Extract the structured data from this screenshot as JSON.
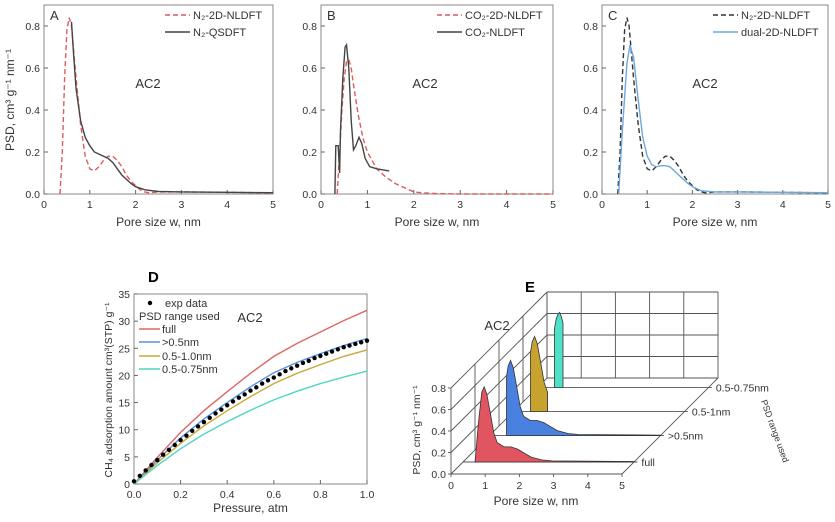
{
  "chart_data": [
    {
      "panel": "A",
      "type": "line",
      "annotation": "AC2",
      "xlabel": "Pore size w, nm",
      "ylabel": "PSD, cm³ g⁻¹ nm⁻¹",
      "xlim": [
        0,
        5
      ],
      "ylim": [
        0,
        0.9
      ],
      "xticks": [
        "0",
        "1",
        "2",
        "3",
        "4",
        "5"
      ],
      "yticks": [
        "0.0",
        "0.2",
        "0.4",
        "0.6",
        "0.8"
      ],
      "series": [
        {
          "name": "N₂-2D-NLDFT",
          "color": "#e05a5a",
          "dash": true,
          "x": [
            0.35,
            0.4,
            0.45,
            0.5,
            0.55,
            0.6,
            0.7,
            0.8,
            0.9,
            1.0,
            1.1,
            1.2,
            1.3,
            1.4,
            1.5,
            1.6,
            1.7,
            1.8,
            1.9,
            2.0,
            2.1,
            2.2,
            2.3,
            2.5,
            3,
            4,
            5
          ],
          "y": [
            0,
            0.2,
            0.55,
            0.78,
            0.84,
            0.8,
            0.55,
            0.33,
            0.18,
            0.12,
            0.11,
            0.13,
            0.16,
            0.18,
            0.18,
            0.16,
            0.13,
            0.09,
            0.06,
            0.04,
            0.02,
            0.01,
            0.005,
            0.01,
            0.01,
            0.008,
            0.005
          ]
        },
        {
          "name": "N₂-QSDFT",
          "color": "#444444",
          "dash": false,
          "x": [
            0.6,
            0.65,
            0.7,
            0.8,
            0.9,
            1.0,
            1.1,
            1.2,
            1.3,
            1.4,
            1.5,
            1.6,
            1.7,
            1.8,
            1.9,
            2.0,
            2.2,
            2.5,
            3,
            4,
            5
          ],
          "y": [
            0.82,
            0.65,
            0.5,
            0.35,
            0.27,
            0.23,
            0.2,
            0.19,
            0.18,
            0.17,
            0.15,
            0.12,
            0.09,
            0.07,
            0.05,
            0.035,
            0.02,
            0.012,
            0.01,
            0.008,
            0.006
          ]
        }
      ]
    },
    {
      "panel": "B",
      "type": "line",
      "annotation": "AC2",
      "xlabel": "Pore size w, nm",
      "ylabel": "",
      "xlim": [
        0,
        5
      ],
      "ylim": [
        0,
        0.9
      ],
      "xticks": [
        "0",
        "1",
        "2",
        "3",
        "4",
        "5"
      ],
      "yticks": [
        "0.0",
        "0.2",
        "0.4",
        "0.6",
        "0.8"
      ],
      "series": [
        {
          "name": "CO₂-2D-NLDFT",
          "color": "#e05a5a",
          "dash": true,
          "x": [
            0.35,
            0.4,
            0.45,
            0.5,
            0.55,
            0.6,
            0.65,
            0.7,
            0.8,
            0.9,
            1.0,
            1.2,
            1.4,
            1.6,
            1.8,
            2.0,
            2.2,
            2.5,
            3,
            5
          ],
          "y": [
            0,
            0.2,
            0.4,
            0.55,
            0.63,
            0.64,
            0.6,
            0.52,
            0.38,
            0.27,
            0.2,
            0.12,
            0.08,
            0.05,
            0.03,
            0.01,
            0.005,
            0.002,
            0,
            0
          ]
        },
        {
          "name": "CO₂-NLDFT",
          "color": "#444444",
          "dash": false,
          "x": [
            0.3,
            0.32,
            0.37,
            0.4,
            0.42,
            0.47,
            0.52,
            0.55,
            0.6,
            0.65,
            0.7,
            0.75,
            0.82,
            0.88,
            0.95,
            1.05,
            1.2,
            1.47
          ],
          "y": [
            0,
            0.23,
            0.23,
            0.1,
            0.3,
            0.55,
            0.7,
            0.71,
            0.6,
            0.35,
            0.21,
            0.23,
            0.27,
            0.24,
            0.17,
            0.13,
            0.12,
            0.11
          ]
        }
      ]
    },
    {
      "panel": "C",
      "type": "line",
      "annotation": "AC2",
      "xlabel": "Pore size w, nm",
      "ylabel": "",
      "xlim": [
        0,
        5
      ],
      "ylim": [
        0,
        0.9
      ],
      "xticks": [
        "0",
        "1",
        "2",
        "3",
        "4",
        "5"
      ],
      "yticks": [
        "0.0",
        "0.2",
        "0.4",
        "0.6",
        "0.8"
      ],
      "series": [
        {
          "name": "N₂-2D-NLDFT",
          "color": "#333333",
          "dash": true,
          "x": [
            0.35,
            0.4,
            0.45,
            0.5,
            0.55,
            0.6,
            0.7,
            0.8,
            0.9,
            1.0,
            1.1,
            1.2,
            1.3,
            1.4,
            1.5,
            1.6,
            1.7,
            1.8,
            1.9,
            2.0,
            2.1,
            2.2,
            2.3,
            2.5,
            3,
            4,
            5
          ],
          "y": [
            0,
            0.2,
            0.55,
            0.78,
            0.84,
            0.8,
            0.55,
            0.33,
            0.18,
            0.12,
            0.11,
            0.13,
            0.16,
            0.18,
            0.18,
            0.16,
            0.13,
            0.09,
            0.06,
            0.04,
            0.02,
            0.01,
            0.005,
            0.01,
            0.01,
            0.008,
            0.005
          ]
        },
        {
          "name": "dual-2D-NLDFT",
          "color": "#6fa8dc",
          "dash": false,
          "x": [
            0.37,
            0.45,
            0.55,
            0.62,
            0.7,
            0.8,
            0.9,
            1.0,
            1.1,
            1.2,
            1.3,
            1.4,
            1.5,
            1.6,
            1.7,
            1.8,
            1.9,
            2.0,
            2.2,
            2.5,
            3,
            4,
            5
          ],
          "y": [
            0,
            0.3,
            0.62,
            0.71,
            0.65,
            0.45,
            0.27,
            0.18,
            0.14,
            0.13,
            0.135,
            0.135,
            0.13,
            0.11,
            0.09,
            0.07,
            0.05,
            0.035,
            0.015,
            0.01,
            0.01,
            0.008,
            0.006
          ]
        }
      ]
    },
    {
      "panel": "D",
      "type": "line",
      "annotation": "AC2",
      "xlabel": "Pressure, atm",
      "ylabel": "CH₄ adsorption amount cm³(STP) g⁻¹",
      "xlim": [
        0,
        1.0
      ],
      "ylim": [
        0,
        35
      ],
      "xticks": [
        "0.0",
        "0.2",
        "0.4",
        "0.6",
        "0.8",
        "1.0"
      ],
      "yticks": [
        "0",
        "5",
        "10",
        "15",
        "20",
        "25",
        "30",
        "35"
      ],
      "legend_title": "PSD range used",
      "scatter": {
        "name": "exp data",
        "color": "#000000",
        "x": [
          0,
          0.025,
          0.05,
          0.075,
          0.1,
          0.125,
          0.15,
          0.175,
          0.2,
          0.225,
          0.25,
          0.275,
          0.3,
          0.325,
          0.35,
          0.375,
          0.4,
          0.425,
          0.45,
          0.475,
          0.5,
          0.525,
          0.55,
          0.575,
          0.6,
          0.625,
          0.65,
          0.675,
          0.7,
          0.725,
          0.75,
          0.775,
          0.8,
          0.825,
          0.85,
          0.875,
          0.9,
          0.925,
          0.95,
          0.975,
          1.0
        ],
        "y": [
          0.5,
          1.5,
          2.5,
          3.5,
          4.4,
          5.4,
          6.3,
          7.2,
          8.1,
          8.9,
          9.8,
          10.6,
          11.4,
          12.2,
          13.0,
          13.7,
          14.5,
          15.2,
          15.9,
          16.5,
          17.2,
          17.8,
          18.5,
          19.1,
          19.6,
          20.2,
          20.8,
          21.3,
          21.8,
          22.3,
          22.7,
          23.2,
          23.6,
          24.0,
          24.4,
          24.8,
          25.2,
          25.5,
          25.8,
          26.1,
          26.4
        ]
      },
      "series": [
        {
          "name": "full",
          "color": "#e06666",
          "x": [
            0,
            0.1,
            0.2,
            0.3,
            0.4,
            0.5,
            0.6,
            0.7,
            0.8,
            0.9,
            1.0
          ],
          "y": [
            0,
            4.9,
            9.5,
            13.5,
            17,
            20.4,
            23.5,
            25.9,
            28,
            30.1,
            32
          ]
        },
        {
          "name": ">0.5nm",
          "color": "#5b8fdc",
          "x": [
            0,
            0.1,
            0.2,
            0.3,
            0.4,
            0.5,
            0.6,
            0.7,
            0.8,
            0.9,
            1.0
          ],
          "y": [
            0,
            4.4,
            8.5,
            12,
            15,
            17.9,
            20.5,
            22.4,
            24,
            25.5,
            26.8
          ]
        },
        {
          "name": "0.5-1.0nm",
          "color": "#c9a83a",
          "x": [
            0,
            0.1,
            0.2,
            0.3,
            0.4,
            0.5,
            0.6,
            0.7,
            0.8,
            0.9,
            1.0
          ],
          "y": [
            0,
            3.9,
            7.5,
            10.7,
            13.5,
            16.1,
            18.5,
            20.4,
            22,
            23.5,
            24.7
          ]
        },
        {
          "name": "0.5-0.75nm",
          "color": "#4fd6c4",
          "x": [
            0,
            0.1,
            0.2,
            0.3,
            0.4,
            0.5,
            0.6,
            0.7,
            0.8,
            0.9,
            1.0
          ],
          "y": [
            0,
            3.4,
            6.5,
            9.2,
            11.5,
            13.6,
            15.5,
            17.1,
            18.5,
            19.7,
            20.8
          ]
        }
      ]
    },
    {
      "panel": "E",
      "type": "area",
      "projection": "3d-waterfall",
      "annotation": "AC2",
      "xlabel": "Pore size w, nm",
      "ylabel": "PSD, cm³ g⁻¹ nm⁻¹",
      "zlabel": "PSD range used",
      "xlim": [
        0,
        5
      ],
      "ylim": [
        0,
        0.8
      ],
      "xticks": [
        "0",
        "1",
        "2",
        "3",
        "4",
        "5"
      ],
      "yticks": [
        "0.0",
        "0.2",
        "0.4",
        "0.6",
        "0.8"
      ],
      "series": [
        {
          "name": "full",
          "color": "#e05560",
          "x": [
            0.35,
            0.45,
            0.55,
            0.62,
            0.7,
            0.8,
            0.9,
            1.0,
            1.2,
            1.4,
            1.6,
            1.8,
            2.0,
            2.3,
            2.6,
            5
          ],
          "y": [
            0,
            0.36,
            0.65,
            0.7,
            0.63,
            0.45,
            0.27,
            0.18,
            0.14,
            0.14,
            0.12,
            0.08,
            0.045,
            0.02,
            0.01,
            0.005
          ]
        },
        {
          "name": ">0.5nm",
          "color": "#4a80e0",
          "x": [
            0.5,
            0.5,
            0.55,
            0.62,
            0.7,
            0.8,
            0.9,
            1.0,
            1.2,
            1.4,
            1.6,
            1.8,
            2.0,
            2.3,
            2.6,
            5
          ],
          "y": [
            0,
            0.55,
            0.65,
            0.7,
            0.63,
            0.45,
            0.27,
            0.18,
            0.14,
            0.14,
            0.12,
            0.08,
            0.045,
            0.02,
            0.01,
            0.005
          ]
        },
        {
          "name": "0.5-1nm",
          "color": "#c8a22e",
          "x": [
            0.5,
            0.5,
            0.55,
            0.62,
            0.7,
            0.8,
            0.9,
            1.0,
            1.0
          ],
          "y": [
            0,
            0.55,
            0.65,
            0.7,
            0.63,
            0.45,
            0.27,
            0.18,
            0
          ]
        },
        {
          "name": "0.5-0.75nm",
          "color": "#4fe0c8",
          "x": [
            0.5,
            0.5,
            0.55,
            0.6,
            0.65,
            0.7,
            0.75,
            0.75
          ],
          "y": [
            0,
            0.55,
            0.64,
            0.68,
            0.7,
            0.66,
            0.6,
            0
          ]
        }
      ]
    }
  ]
}
